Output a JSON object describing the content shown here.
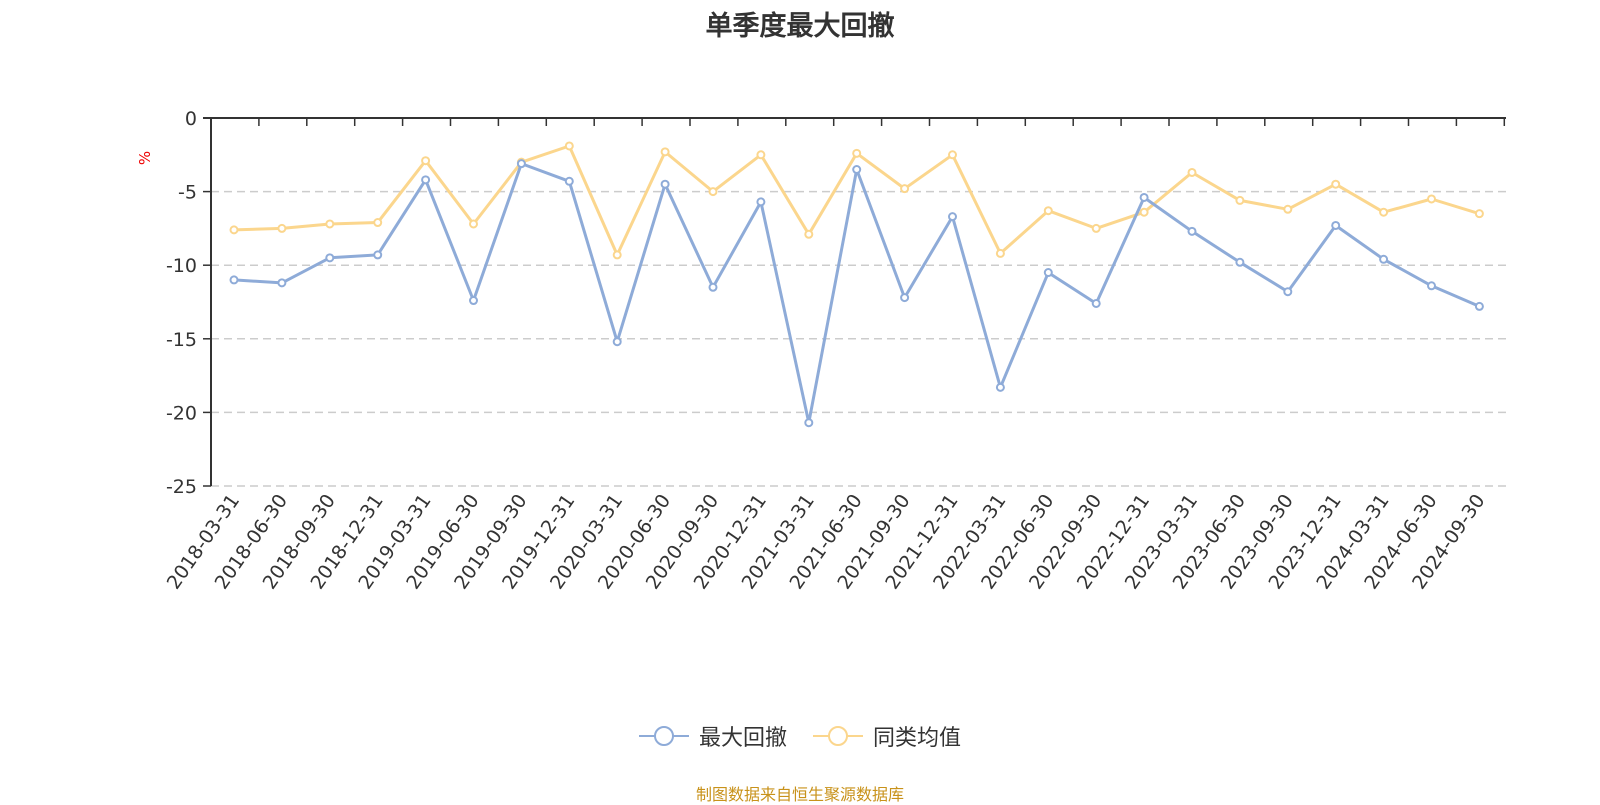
{
  "source_note": "制图数据来自恒生聚源数据库",
  "colors": {
    "max_drawdown": "#8eabd8",
    "peer_average": "#fbd68d",
    "axis": "#333333",
    "grid": "#cccccc",
    "unit_label": "#ee0000",
    "source_note": "#c8921a"
  },
  "chart_data": {
    "type": "line",
    "title": "单季度最大回撤",
    "ylabel": "%",
    "xlabel": "",
    "ylim": [
      -25,
      0
    ],
    "yticks": [
      0,
      -5,
      -10,
      -15,
      -20,
      -25
    ],
    "grid": true,
    "legend_position": "bottom",
    "categories": [
      "2018-03-31",
      "2018-06-30",
      "2018-09-30",
      "2018-12-31",
      "2019-03-31",
      "2019-06-30",
      "2019-09-30",
      "2019-12-31",
      "2020-03-31",
      "2020-06-30",
      "2020-09-30",
      "2020-12-31",
      "2021-03-31",
      "2021-06-30",
      "2021-09-30",
      "2021-12-31",
      "2022-03-31",
      "2022-06-30",
      "2022-09-30",
      "2022-12-31",
      "2023-03-31",
      "2023-06-30",
      "2023-09-30",
      "2023-12-31",
      "2024-03-31",
      "2024-06-30",
      "2024-09-30"
    ],
    "series": [
      {
        "name": "最大回撤",
        "color": "#8eabd8",
        "values": [
          -11.0,
          -11.2,
          -9.5,
          -9.3,
          -4.2,
          -12.4,
          -3.1,
          -4.3,
          -15.2,
          -4.5,
          -11.5,
          -5.7,
          -20.7,
          -3.5,
          -12.2,
          -6.7,
          -18.3,
          -10.5,
          -12.6,
          -5.4,
          -7.7,
          -9.8,
          -11.8,
          -7.3,
          -9.6,
          -11.4,
          -12.8
        ]
      },
      {
        "name": "同类均值",
        "color": "#fbd68d",
        "values": [
          -7.6,
          -7.5,
          -7.2,
          -7.1,
          -2.9,
          -7.2,
          -3.0,
          -1.9,
          -9.3,
          -2.3,
          -5.0,
          -2.5,
          -7.9,
          -2.4,
          -4.8,
          -2.5,
          -9.2,
          -6.3,
          -7.5,
          -6.4,
          -3.7,
          -5.6,
          -6.2,
          -4.5,
          -6.4,
          -5.5,
          -6.5
        ]
      }
    ]
  }
}
